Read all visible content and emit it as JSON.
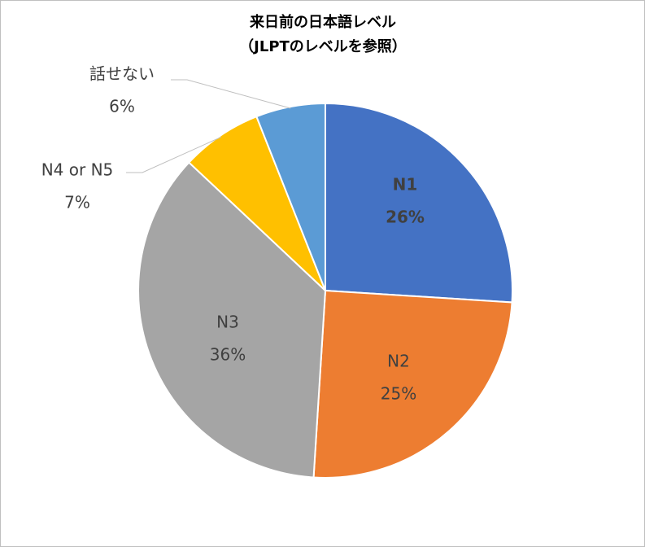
{
  "chart_data": {
    "type": "pie",
    "title": "来日前の日本語レベル",
    "subtitle": "（JLPTのレベルを参照）",
    "categories": [
      "N1",
      "N2",
      "N3",
      "N4 or N5",
      "話せない"
    ],
    "values": [
      26,
      25,
      36,
      7,
      6
    ],
    "value_labels": [
      "26%",
      "25%",
      "36%",
      "7%",
      "6%"
    ],
    "colors": [
      "#4472c4",
      "#ed7d31",
      "#a5a5a5",
      "#ffc000",
      "#5b9bd5"
    ]
  }
}
